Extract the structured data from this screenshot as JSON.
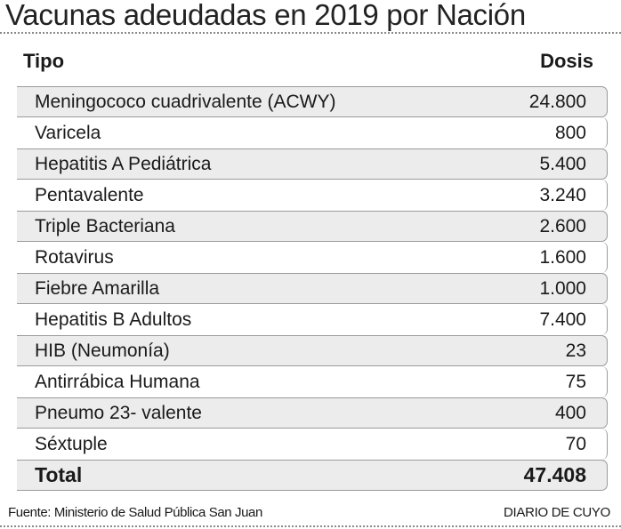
{
  "chart_data": {
    "type": "table",
    "title": "Vacunas adeudadas en 2019 por Nación",
    "columns": [
      "Tipo",
      "Dosis"
    ],
    "rows": [
      {
        "tipo": "Meningococo cuadrivalente (ACWY)",
        "dosis": "24.800",
        "value": 24800
      },
      {
        "tipo": "Varicela",
        "dosis": "800",
        "value": 800
      },
      {
        "tipo": "Hepatitis A Pediátrica",
        "dosis": "5.400",
        "value": 5400
      },
      {
        "tipo": "Pentavalente",
        "dosis": "3.240",
        "value": 3240
      },
      {
        "tipo": "Triple Bacteriana",
        "dosis": "2.600",
        "value": 2600
      },
      {
        "tipo": "Rotavirus",
        "dosis": "1.600",
        "value": 1600
      },
      {
        "tipo": "Fiebre Amarilla",
        "dosis": "1.000",
        "value": 1000
      },
      {
        "tipo": "Hepatitis B Adultos",
        "dosis": "7.400",
        "value": 7400
      },
      {
        "tipo": "HIB (Neumonía)",
        "dosis": "23",
        "value": 23
      },
      {
        "tipo": "Antirrábica Humana",
        "dosis": "75",
        "value": 75
      },
      {
        "tipo": "Pneumo 23- valente",
        "dosis": "400",
        "value": 400
      },
      {
        "tipo": "Séxtuple",
        "dosis": "70",
        "value": 70
      }
    ],
    "total": {
      "label": "Total",
      "dosis": "47.408",
      "value": 47408
    }
  },
  "footer": {
    "source": "Fuente: Ministerio de Salud Pública San Juan",
    "brand": "DIARIO DE CUYO"
  }
}
